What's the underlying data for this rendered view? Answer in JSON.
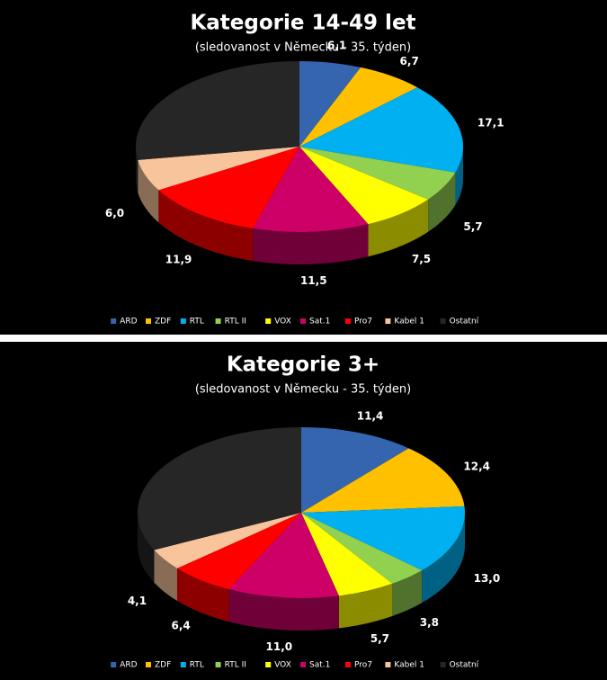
{
  "chart_data": [
    {
      "type": "pie",
      "title": "Kategorie 14-49 let",
      "subtitle": "(sledovanost v Německu - 35. týden)",
      "categories": [
        "ARD",
        "ZDF",
        "RTL",
        "RTL II",
        "VOX",
        "Sat.1",
        "Pro7",
        "Kabel 1",
        "Ostatní"
      ],
      "values": [
        6.1,
        6.7,
        17.1,
        5.7,
        7.5,
        11.5,
        11.9,
        6.0,
        27.5
      ],
      "value_labels": [
        "6,1",
        "6,7",
        "17,1",
        "5,7",
        "7,5",
        "11,5",
        "11,9",
        "6,0",
        null
      ],
      "colors": [
        "#3465ae",
        "#ffc000",
        "#00b0f0",
        "#92d050",
        "#ffff00",
        "#cc0066",
        "#ff0000",
        "#f8c49c",
        "#262626"
      ],
      "legend": "bottom"
    },
    {
      "type": "pie",
      "title": "Kategorie 3+",
      "subtitle": "(sledovanost v Německu - 35. týden)",
      "categories": [
        "ARD",
        "ZDF",
        "RTL",
        "RTL II",
        "VOX",
        "Sat.1",
        "Pro7",
        "Kabel 1",
        "Ostatní"
      ],
      "values": [
        11.4,
        12.4,
        13.0,
        3.8,
        5.7,
        11.0,
        6.4,
        4.1,
        32.2
      ],
      "value_labels": [
        "11,4",
        "12,4",
        "13,0",
        "3,8",
        "5,7",
        "11,0",
        "6,4",
        "4,1",
        null
      ],
      "colors": [
        "#3465ae",
        "#ffc000",
        "#00b0f0",
        "#92d050",
        "#ffff00",
        "#cc0066",
        "#ff0000",
        "#f8c49c",
        "#262626"
      ],
      "legend": "bottom"
    }
  ]
}
